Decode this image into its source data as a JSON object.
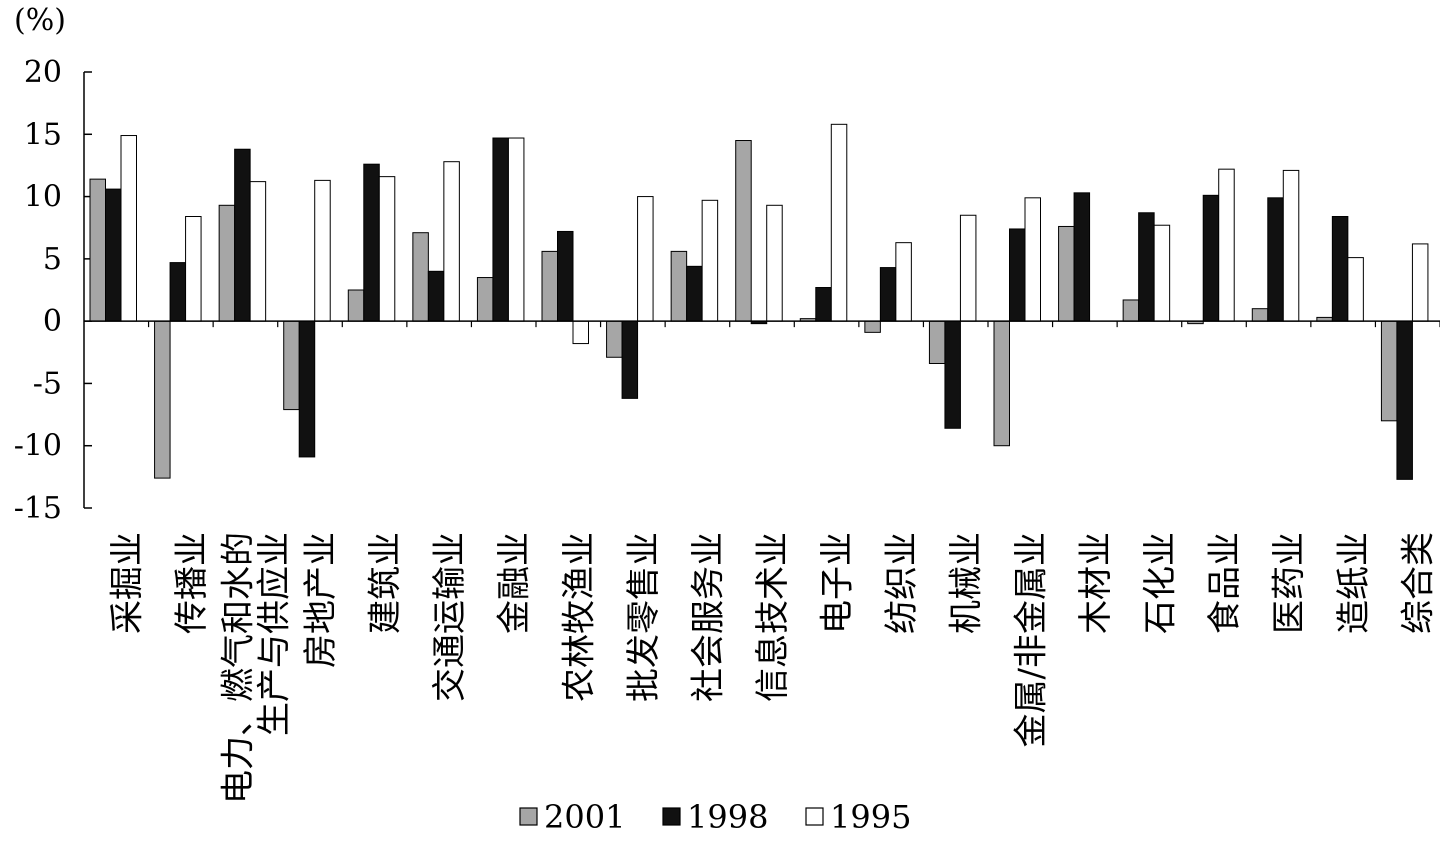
{
  "chart_data": {
    "type": "bar",
    "unit_label": "(%)",
    "ylim": [
      -15,
      20
    ],
    "yticks": [
      "20",
      "15",
      "10",
      "5",
      "0",
      "-5",
      "-10",
      "-15"
    ],
    "ytick_values": [
      20,
      15,
      10,
      5,
      0,
      -5,
      -10,
      -15
    ],
    "categories": [
      "采掘业",
      "传播业",
      "电力、燃气和水的生产与供应业",
      "房地产业",
      "建筑业",
      "交通运输业",
      "金融业",
      "农林牧渔业",
      "批发零售业",
      "社会服务业",
      "信息技术业",
      "电子业",
      "纺织业",
      "机械业",
      "金属/非金属业",
      "木材业",
      "石化业",
      "食品业",
      "医药业",
      "造纸业",
      "综合类"
    ],
    "category_lines": [
      [
        "采掘业"
      ],
      [
        "传播业"
      ],
      [
        "电力、燃气和水的",
        "生产与供应业"
      ],
      [
        "房地产业"
      ],
      [
        "建筑业"
      ],
      [
        "交通运输业"
      ],
      [
        "金融业"
      ],
      [
        "农林牧渔业"
      ],
      [
        "批发零售业"
      ],
      [
        "社会服务业"
      ],
      [
        "信息技术业"
      ],
      [
        "电子业"
      ],
      [
        "纺织业"
      ],
      [
        "机械业"
      ],
      [
        "金属/非金属业"
      ],
      [
        "木材业"
      ],
      [
        "石化业"
      ],
      [
        "食品业"
      ],
      [
        "医药业"
      ],
      [
        "造纸业"
      ],
      [
        "综合类"
      ]
    ],
    "series": [
      {
        "name": "2001",
        "color": "#a6a6a6",
        "values": [
          11.4,
          -12.6,
          9.3,
          -7.1,
          2.5,
          7.1,
          3.5,
          5.6,
          -2.9,
          5.6,
          14.5,
          0.2,
          -0.9,
          -3.4,
          -10.0,
          7.6,
          1.7,
          -0.2,
          1.0,
          0.3,
          -8.0
        ]
      },
      {
        "name": "1998",
        "color": "#111111",
        "values": [
          10.6,
          4.7,
          13.8,
          -10.9,
          12.6,
          4.0,
          14.7,
          7.2,
          -6.2,
          4.4,
          -0.2,
          2.7,
          4.3,
          -8.6,
          7.4,
          10.3,
          8.7,
          10.1,
          9.9,
          8.4,
          -12.7
        ]
      },
      {
        "name": "1995",
        "color": "#ffffff",
        "values": [
          14.9,
          8.4,
          11.2,
          11.3,
          11.6,
          12.8,
          14.7,
          -1.8,
          10.0,
          9.7,
          9.3,
          15.8,
          6.3,
          8.5,
          9.9,
          0,
          7.7,
          12.2,
          12.1,
          5.1,
          6.2
        ]
      }
    ],
    "legend": [
      "2001",
      "1998",
      "1995"
    ],
    "legend_position": "bottom-center",
    "grid": false
  }
}
